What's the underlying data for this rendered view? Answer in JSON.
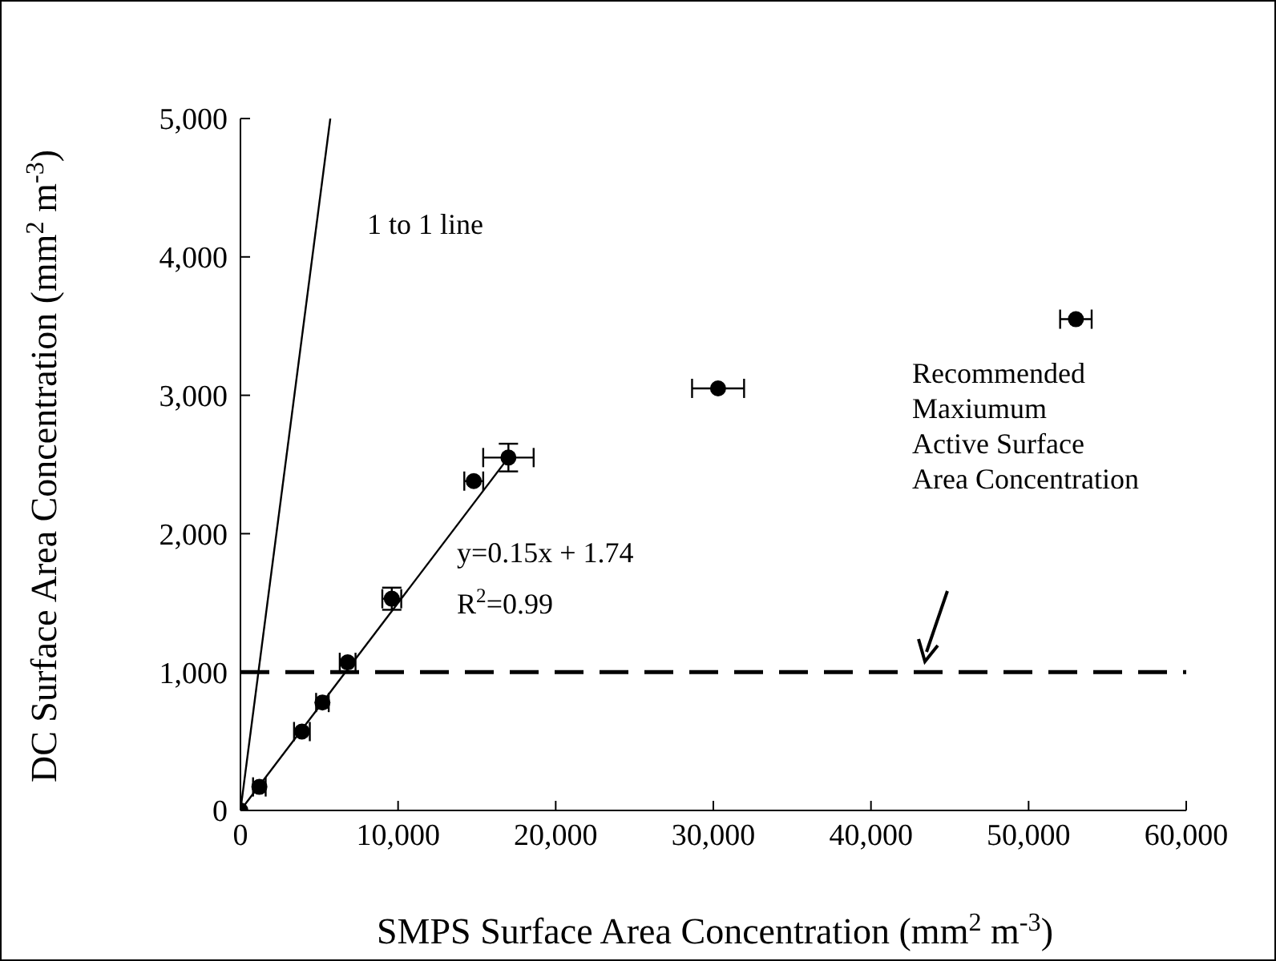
{
  "chart_data": {
    "type": "scatter",
    "xlabel": "SMPS Surface Area Concentration (mm$^{2}$ m$^{-3}$)",
    "ylabel": "DC Surface Area Concentration (mm$^{2}$ m$^{-3}$)",
    "xlim": [
      0,
      60000
    ],
    "ylim": [
      0,
      5000
    ],
    "xticks": [
      {
        "value": 0,
        "label": "0"
      },
      {
        "value": 10000,
        "label": "10,000"
      },
      {
        "value": 20000,
        "label": "20,000"
      },
      {
        "value": 30000,
        "label": "30,000"
      },
      {
        "value": 40000,
        "label": "40,000"
      },
      {
        "value": 50000,
        "label": "50,000"
      },
      {
        "value": 60000,
        "label": "60,000"
      }
    ],
    "yticks": [
      {
        "value": 0,
        "label": "0"
      },
      {
        "value": 1000,
        "label": "1,000"
      },
      {
        "value": 2000,
        "label": "2,000"
      },
      {
        "value": 3000,
        "label": "3,000"
      },
      {
        "value": 4000,
        "label": "4,000"
      },
      {
        "value": 5000,
        "label": "5,000"
      }
    ],
    "grid": false,
    "series": [
      {
        "color": "#000000",
        "marker": "circle",
        "x": [
          0,
          1200,
          3900,
          5200,
          6800,
          9600,
          14800,
          17000,
          30300,
          53000
        ],
        "values": [
          0,
          170,
          570,
          780,
          1070,
          1530,
          2380,
          2550,
          3050,
          3550
        ],
        "xerrors": [
          null,
          400,
          500,
          400,
          500,
          600,
          600,
          1600,
          1650,
          1000
        ],
        "errors": [
          null,
          null,
          null,
          null,
          null,
          80,
          null,
          100,
          null,
          null
        ]
      },
      {
        "type": "line",
        "color": "#000000",
        "x": [
          0,
          17000
        ],
        "values": [
          0,
          2550
        ]
      },
      {
        "type": "line",
        "color": "#000000",
        "x": [
          0,
          5700
        ],
        "values": [
          0,
          5000
        ]
      }
    ],
    "ref_lines": [
      {
        "axis": "y",
        "value": 1000,
        "color": "#000000",
        "line_style": "dashed"
      }
    ],
    "annotations": [
      "1 to 1 line",
      "y=0.15x + 1.74",
      "R$^{2}$=0.99",
      "Recommended\nMaxiumum\nActive Surface\nArea Concentration"
    ]
  }
}
